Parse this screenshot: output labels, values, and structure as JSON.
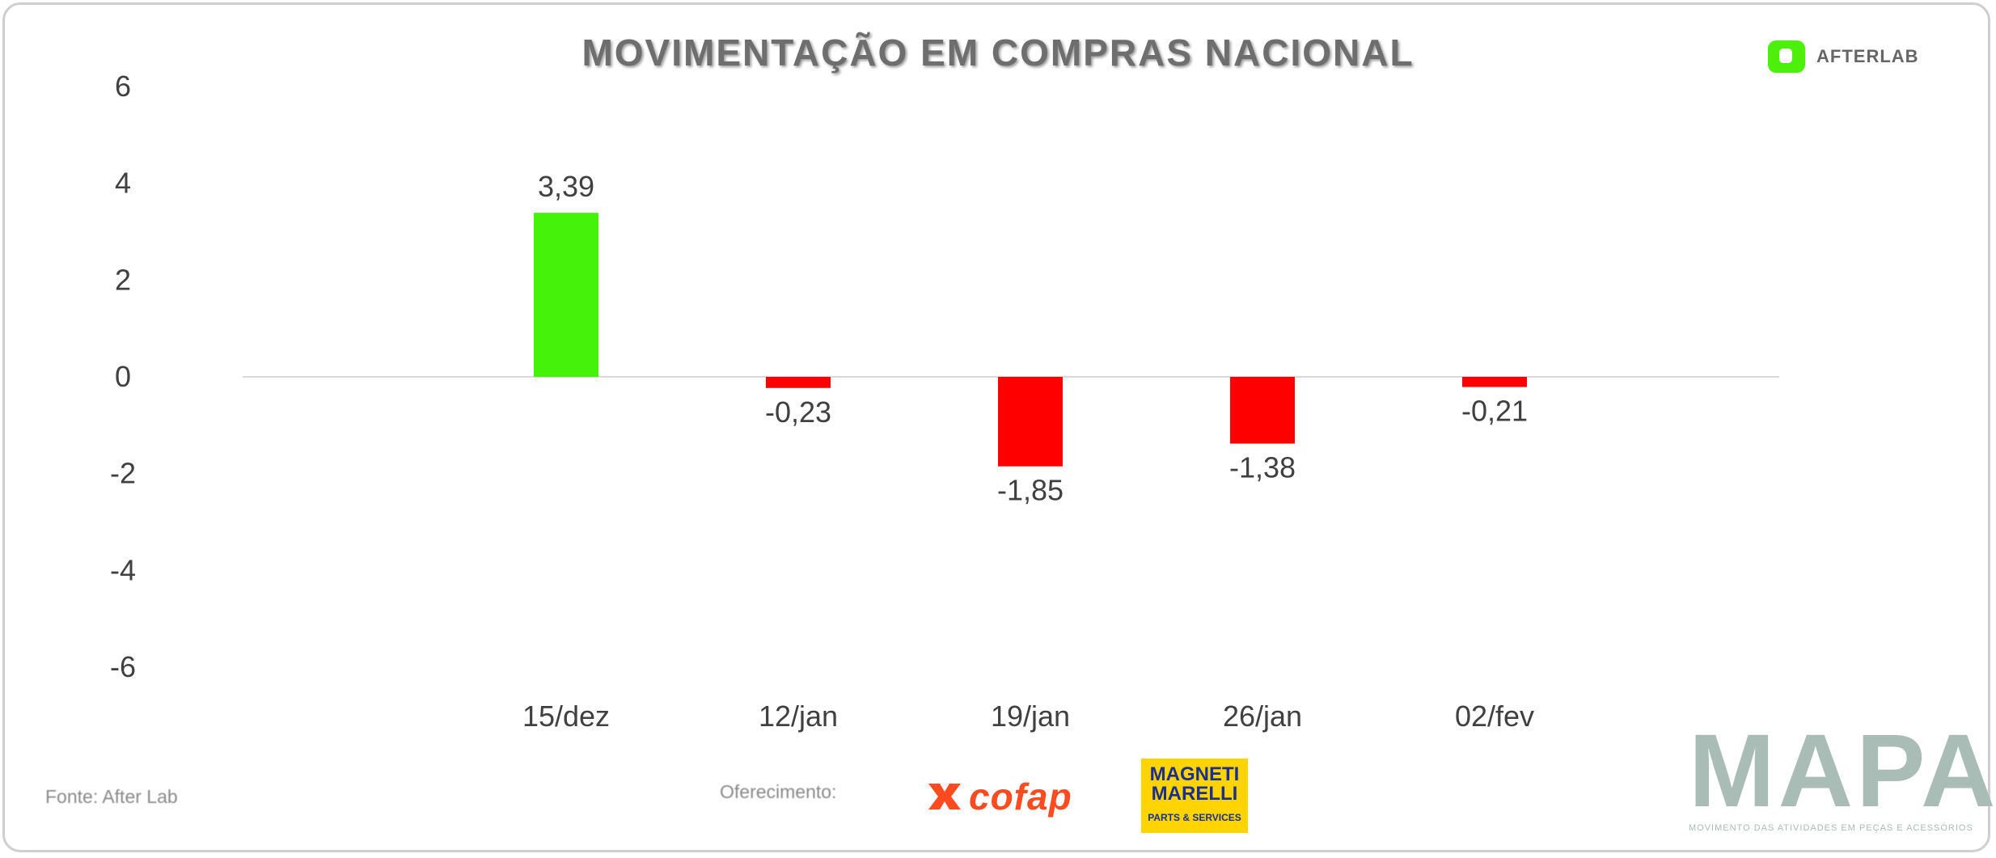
{
  "title": "MOVIMENTAÇÃO EM COMPRAS NACIONAL",
  "brand_logo": {
    "text": "AFTERLAB",
    "icon": "afterlab-logo-icon",
    "color": "#4cf00a"
  },
  "source": "Fonte: After Lab",
  "sponsors": {
    "label": "Oferecimento:",
    "cofap": {
      "text": "cofap",
      "icon": "cofap-logo-icon",
      "color": "#ff4b1f"
    },
    "magneti_marelli": {
      "line1": "MAGNETI",
      "line2": "MARELLI",
      "line3": "PARTS & SERVICES",
      "color": "#ffd400"
    }
  },
  "mapa": {
    "title": "MAPA",
    "subtitle": "MOVIMENTO DAS ATIVIDADES EM PEÇAS E ACESSÓRIOS"
  },
  "chart_data": {
    "type": "bar",
    "title": "MOVIMENTAÇÃO EM COMPRAS NACIONAL",
    "categories": [
      "15/dez",
      "12/jan",
      "19/jan",
      "26/jan",
      "02/fev"
    ],
    "values": [
      3.39,
      -0.23,
      -1.85,
      -1.38,
      -0.21
    ],
    "data_labels": [
      "3,39",
      "-0,23",
      "-1,85",
      "-1,38",
      "-0,21"
    ],
    "y_ticks": [
      "6",
      "4",
      "2",
      "0",
      "-2",
      "-4",
      "-6"
    ],
    "ylim": [
      -6,
      6
    ],
    "colors": {
      "positive": "#44f20a",
      "negative": "#ff0000",
      "axis": "#d9d9d9",
      "text": "#404040"
    },
    "grid": false,
    "legend": "none"
  }
}
